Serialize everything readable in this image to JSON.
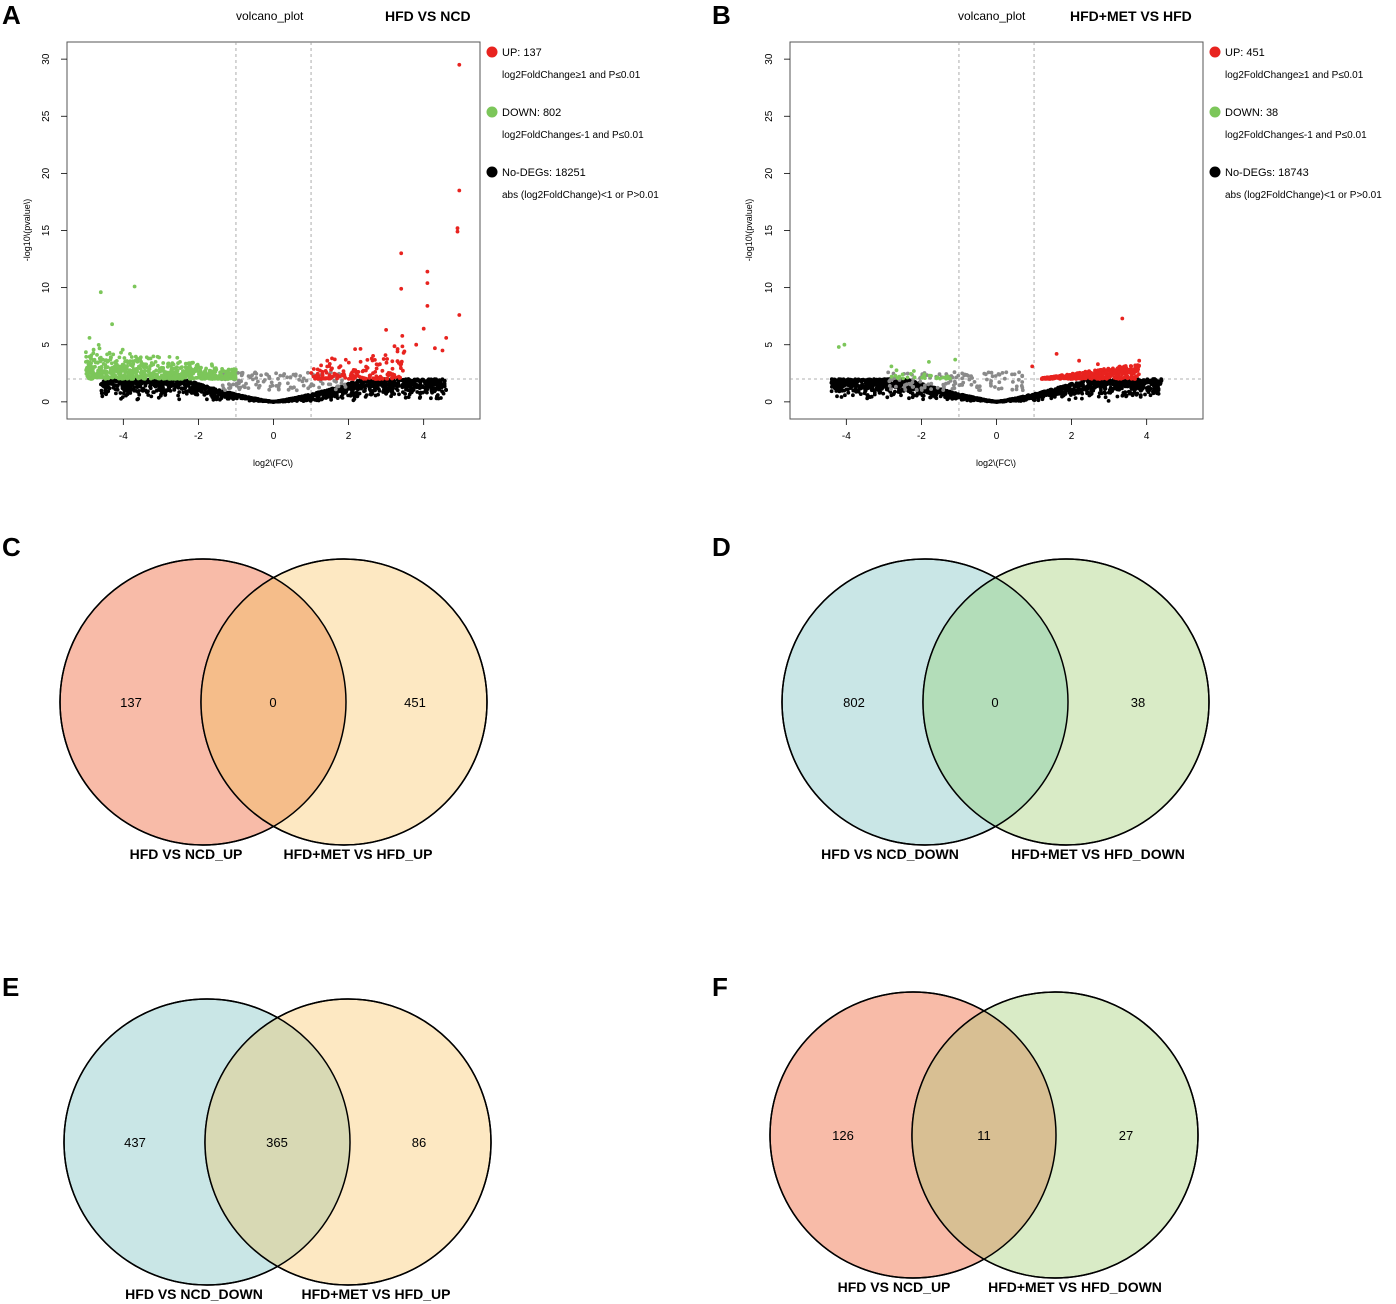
{
  "colors": {
    "up": "#e8231f",
    "down": "#7cc65a",
    "nodeg": "#000000",
    "grey": "#8a8a8a",
    "salmon": "#f8bba8",
    "cream": "#fde8c2",
    "lightblue": "#c9e6e6",
    "lightgreen": "#d9ebc6",
    "overlap_orange": "#f5bd8a",
    "overlap_green": "#b3ddb9",
    "overlap_olive": "#d8d9b4",
    "overlap_tan": "#d8bf93"
  },
  "chart_data": [
    {
      "panel": "A",
      "type": "scatter",
      "title": "volcano_plot",
      "subtitle": "HFD VS NCD",
      "xlabel": "log2\\(FC\\)",
      "ylabel": "-log10\\(pvalue\\)",
      "xlim": [
        -5.5,
        5.5
      ],
      "ylim": [
        -1.5,
        31.5
      ],
      "xticks": [
        -4,
        -2,
        0,
        2,
        4
      ],
      "yticks": [
        0,
        5,
        10,
        15,
        20,
        25,
        30
      ],
      "xtick_labels": [
        "-4",
        "-2",
        "0",
        "2",
        "4"
      ],
      "ytick_labels": [
        "0",
        "5",
        "10",
        "15",
        "20",
        "25",
        "30"
      ],
      "thresholds": {
        "x": [
          -1,
          1
        ],
        "y": 2
      },
      "legend": [
        {
          "key": "up",
          "label": "UP: 137",
          "condition": "log2FoldChange≥1 and P≤0.01"
        },
        {
          "key": "down",
          "label": "DOWN: 802",
          "condition": "log2FoldChange≤-1 and P≤0.01"
        },
        {
          "key": "nodeg",
          "label": "No-DEGs: 18251",
          "condition": "abs (log2FoldChange)<1 or P>0.01"
        }
      ],
      "highlight_up": [
        [
          4.95,
          29.5
        ],
        [
          4.95,
          18.5
        ],
        [
          4.9,
          15.2
        ],
        [
          4.9,
          14.9
        ],
        [
          4.95,
          7.6
        ],
        [
          3.4,
          13
        ],
        [
          4.1,
          11.4
        ],
        [
          4.1,
          10.4
        ],
        [
          3.4,
          9.9
        ],
        [
          4.1,
          8.4
        ],
        [
          3.0,
          6.3
        ],
        [
          4.0,
          6.4
        ],
        [
          4.6,
          5.6
        ],
        [
          4.5,
          4.5
        ],
        [
          3.8,
          5.0
        ],
        [
          4.3,
          4.7
        ]
      ],
      "highlight_down": [
        [
          -4.6,
          9.6
        ],
        [
          -3.7,
          10.1
        ],
        [
          -4.3,
          6.8
        ],
        [
          -4.9,
          5.6
        ]
      ],
      "up_range": [
        1.0,
        3.5,
        2.0,
        5.5
      ],
      "down_range": [
        -5.0,
        -1.0,
        2.0,
        5.5
      ],
      "grey_range": [
        -1.5,
        2.0
      ]
    },
    {
      "panel": "B",
      "type": "scatter",
      "title": "volcano_plot",
      "subtitle": "HFD+MET VS HFD",
      "xlabel": "log2\\(FC\\)",
      "ylabel": "-log10\\(pvalue\\)",
      "xlim": [
        -5.5,
        5.5
      ],
      "ylim": [
        -1.5,
        31.5
      ],
      "xticks": [
        -4,
        -2,
        0,
        2,
        4
      ],
      "yticks": [
        0,
        5,
        10,
        15,
        20,
        25,
        30
      ],
      "xtick_labels": [
        "-4",
        "-2",
        "0",
        "2",
        "4"
      ],
      "ytick_labels": [
        "0",
        "5",
        "10",
        "15",
        "20",
        "25",
        "30"
      ],
      "thresholds": {
        "x": [
          -1,
          1
        ],
        "y": 2
      },
      "legend": [
        {
          "key": "up",
          "label": "UP: 451",
          "condition": "log2FoldChange≥1 and P≤0.01"
        },
        {
          "key": "down",
          "label": "DOWN: 38",
          "condition": "log2FoldChange≤-1 and P≤0.01"
        },
        {
          "key": "nodeg",
          "label": "No-DEGs: 18743",
          "condition": "abs (log2FoldChange)<1 or P>0.01"
        }
      ],
      "highlight_up": [
        [
          3.35,
          7.3
        ],
        [
          1.6,
          4.2
        ],
        [
          0.95,
          3.1
        ],
        [
          2.2,
          3.6
        ],
        [
          2.7,
          3.3
        ],
        [
          3.8,
          3.6
        ]
      ],
      "highlight_down": [
        [
          -4.2,
          4.8
        ],
        [
          -4.05,
          5.0
        ],
        [
          -2.8,
          3.1
        ],
        [
          -1.8,
          3.5
        ],
        [
          -1.1,
          3.7
        ],
        [
          -2.5,
          2.4
        ],
        [
          -2.2,
          2.7
        ]
      ],
      "up_range": [
        1.2,
        3.8,
        2.0,
        3.6
      ],
      "down_range": [
        -2.8,
        -1.0,
        2.0,
        3.0
      ],
      "grey_range": [
        -2.9,
        0.8
      ]
    }
  ],
  "venns": [
    {
      "panel": "C",
      "left_count": "137",
      "overlap_count": "0",
      "right_count": "451",
      "left_label": "HFD VS NCD_UP",
      "right_label": "HFD+MET VS HFD_UP",
      "left_color": "salmon",
      "right_color": "cream",
      "overlap_color": "overlap_orange"
    },
    {
      "panel": "D",
      "left_count": "802",
      "overlap_count": "0",
      "right_count": "38",
      "left_label": "HFD VS NCD_DOWN",
      "right_label": "HFD+MET VS HFD_DOWN",
      "left_color": "lightblue",
      "right_color": "lightgreen",
      "overlap_color": "overlap_green"
    },
    {
      "panel": "E",
      "left_count": "437",
      "overlap_count": "365",
      "right_count": "86",
      "left_label": "HFD VS NCD_DOWN",
      "right_label": "HFD+MET VS HFD_UP",
      "left_color": "lightblue",
      "right_color": "cream",
      "overlap_color": "overlap_olive"
    },
    {
      "panel": "F",
      "left_count": "126",
      "overlap_count": "11",
      "right_count": "27",
      "left_label": "HFD VS NCD_UP",
      "right_label": "HFD+MET VS HFD_DOWN",
      "left_color": "salmon",
      "right_color": "lightgreen",
      "overlap_color": "overlap_tan"
    }
  ]
}
